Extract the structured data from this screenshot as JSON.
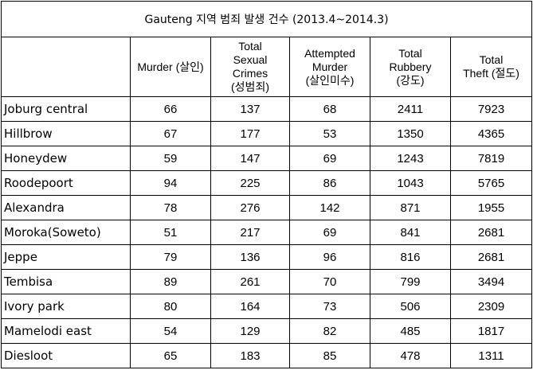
{
  "title": "Gauteng 지역 범죄 발생 건수 (2013.4~2014.3)",
  "columns": [
    {
      "key": "murder",
      "lines": [
        "Murder (살인)"
      ]
    },
    {
      "key": "sexual",
      "lines": [
        "Total",
        "Sexual",
        "Crimes",
        "(성범죄)"
      ]
    },
    {
      "key": "attempted",
      "lines": [
        "Attempted",
        "Murder",
        "(살인미수)"
      ]
    },
    {
      "key": "robbery",
      "lines": [
        "Total",
        "Rubbery",
        "(강도)"
      ]
    },
    {
      "key": "theft",
      "lines": [
        "Total",
        "Theft (절도)"
      ]
    }
  ],
  "rows": [
    {
      "area": "Joburg central",
      "murder": "66",
      "sexual": "137",
      "attempted": "68",
      "robbery": "2411",
      "theft": "7923"
    },
    {
      "area": "Hillbrow",
      "murder": "67",
      "sexual": "177",
      "attempted": "53",
      "robbery": "1350",
      "theft": "4365"
    },
    {
      "area": "Honeydew",
      "murder": "59",
      "sexual": "147",
      "attempted": "69",
      "robbery": "1243",
      "theft": "7819"
    },
    {
      "area": "Roodepoort",
      "murder": "94",
      "sexual": "225",
      "attempted": "86",
      "robbery": "1043",
      "theft": "5765"
    },
    {
      "area": "Alexandra",
      "murder": "78",
      "sexual": "276",
      "attempted": "142",
      "robbery": "871",
      "theft": "1955"
    },
    {
      "area": "Moroka(Soweto)",
      "murder": "51",
      "sexual": "217",
      "attempted": "69",
      "robbery": "841",
      "theft": "2681"
    },
    {
      "area": "Jeppe",
      "murder": "79",
      "sexual": "136",
      "attempted": "96",
      "robbery": "816",
      "theft": "2681"
    },
    {
      "area": "Tembisa",
      "murder": "89",
      "sexual": "261",
      "attempted": "70",
      "robbery": "799",
      "theft": "3494"
    },
    {
      "area": "Ivory park",
      "murder": "80",
      "sexual": "164",
      "attempted": "73",
      "robbery": "506",
      "theft": "2309"
    },
    {
      "area": "Mamelodi east",
      "murder": "54",
      "sexual": "129",
      "attempted": "82",
      "robbery": "485",
      "theft": "1817"
    },
    {
      "area": "Diesloot",
      "murder": "65",
      "sexual": "183",
      "attempted": "85",
      "robbery": "478",
      "theft": "1311"
    }
  ]
}
